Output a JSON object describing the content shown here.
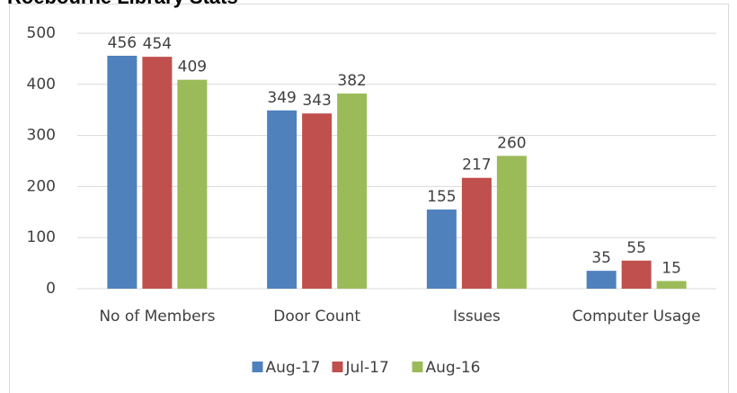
{
  "chart_data": {
    "type": "bar",
    "title": "Roebourne Library Stats",
    "categories": [
      "No of Members",
      "Door Count",
      "Issues",
      "Computer Usage"
    ],
    "series": [
      {
        "name": "Aug-17",
        "color": "#4f81bd",
        "values": [
          456,
          349,
          155,
          35
        ]
      },
      {
        "name": "Jul-17",
        "color": "#c0504d",
        "values": [
          454,
          343,
          217,
          55
        ]
      },
      {
        "name": "Aug-16",
        "color": "#9bbb59",
        "values": [
          409,
          382,
          260,
          15
        ]
      }
    ],
    "ylim": [
      0,
      500
    ],
    "yticks": [
      0,
      100,
      200,
      300,
      400,
      500
    ],
    "grid": true,
    "legend": "bottom"
  }
}
